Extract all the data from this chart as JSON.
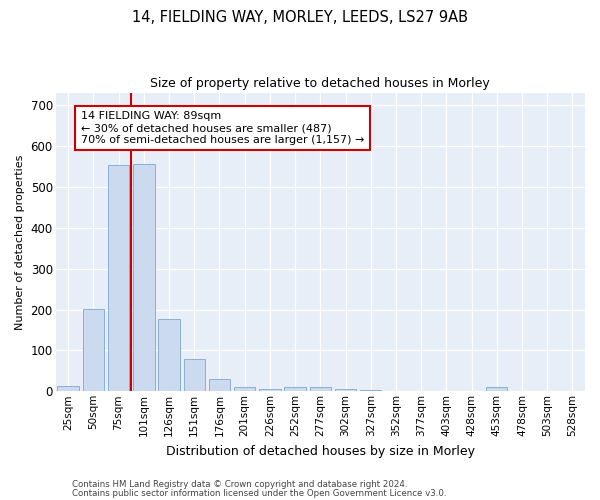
{
  "title1": "14, FIELDING WAY, MORLEY, LEEDS, LS27 9AB",
  "title2": "Size of property relative to detached houses in Morley",
  "xlabel": "Distribution of detached houses by size in Morley",
  "ylabel": "Number of detached properties",
  "bar_categories": [
    "25sqm",
    "50sqm",
    "75sqm",
    "101sqm",
    "126sqm",
    "151sqm",
    "176sqm",
    "201sqm",
    "226sqm",
    "252sqm",
    "277sqm",
    "302sqm",
    "327sqm",
    "352sqm",
    "377sqm",
    "403sqm",
    "428sqm",
    "453sqm",
    "478sqm",
    "503sqm",
    "528sqm"
  ],
  "bar_values": [
    13,
    202,
    555,
    557,
    178,
    78,
    30,
    10,
    5,
    10,
    10,
    5,
    3,
    0,
    0,
    0,
    0,
    10,
    0,
    0,
    0
  ],
  "bar_color": "#ccdaf0",
  "bar_edgecolor": "#8ab0d8",
  "red_line_x": 2.5,
  "annotation_text": "14 FIELDING WAY: 89sqm\n← 30% of detached houses are smaller (487)\n70% of semi-detached houses are larger (1,157) →",
  "annotation_box_color": "white",
  "annotation_border_color": "#cc0000",
  "vline_color": "#cc0000",
  "ylim": [
    0,
    730
  ],
  "yticks": [
    0,
    100,
    200,
    300,
    400,
    500,
    600,
    700
  ],
  "footer1": "Contains HM Land Registry data © Crown copyright and database right 2024.",
  "footer2": "Contains public sector information licensed under the Open Government Licence v3.0.",
  "bg_color": "#ffffff",
  "plot_bg_color": "#e8eef8"
}
